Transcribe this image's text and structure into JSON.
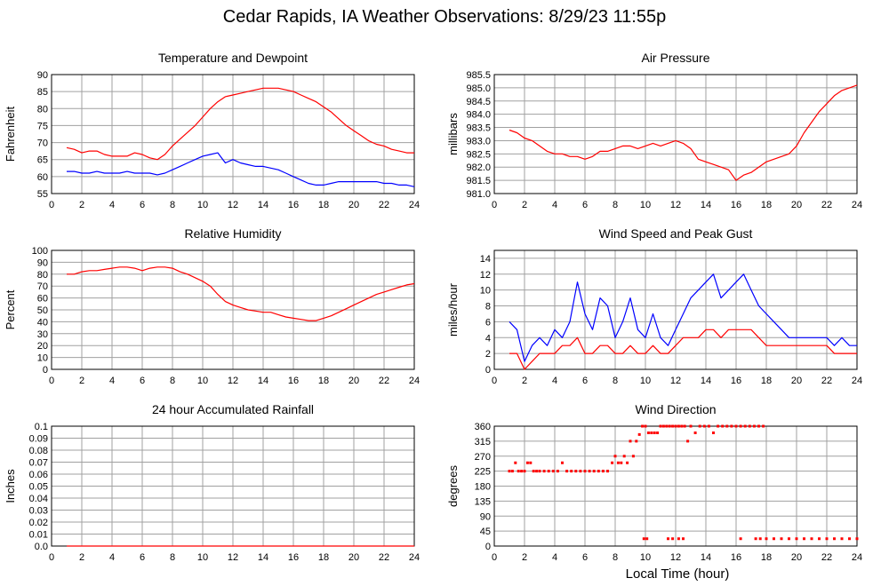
{
  "page": {
    "title": "Cedar Rapids, IA Weather Observations: 8/29/23 11:55p",
    "xlabel": "Local Time (hour)"
  },
  "colors": {
    "red": "#ff0000",
    "blue": "#0000ff",
    "grid": "#a0a0a0",
    "frame": "#000000"
  },
  "chart_data": [
    {
      "id": "temp",
      "type": "line",
      "title": "Temperature and Dewpoint",
      "ylabel": "Fahrenheit",
      "xlim": [
        0,
        24
      ],
      "ylim": [
        55,
        90
      ],
      "xticks": [
        2,
        4,
        6,
        8,
        10,
        12,
        14,
        16,
        18,
        20,
        22,
        24
      ],
      "yticks": [
        55,
        60,
        65,
        70,
        75,
        80,
        85,
        90
      ],
      "ytick_labels": [
        "55",
        "60",
        "65",
        "70",
        "75",
        "80",
        "85",
        "90"
      ],
      "grid": true,
      "series": [
        {
          "color": "#ff0000",
          "x": [
            1,
            1.5,
            2,
            2.5,
            3,
            3.5,
            4,
            4.5,
            5,
            5.5,
            6,
            6.5,
            7,
            7.5,
            8,
            8.5,
            9,
            9.5,
            10,
            10.5,
            11,
            11.5,
            12,
            12.5,
            13,
            13.5,
            14,
            14.5,
            15,
            15.5,
            16,
            16.5,
            17,
            17.5,
            18,
            18.5,
            19,
            19.5,
            20,
            20.5,
            21,
            21.5,
            22,
            22.5,
            23,
            23.5,
            24
          ],
          "y": [
            68.5,
            68,
            67,
            67.5,
            67.5,
            66.5,
            66,
            66,
            66,
            67,
            66.5,
            65.5,
            65,
            66.5,
            69,
            71,
            73,
            75,
            77.5,
            80,
            82,
            83.5,
            84,
            84.5,
            85,
            85.5,
            86,
            86,
            86,
            85.5,
            85,
            84,
            83,
            82,
            80.5,
            79,
            77,
            75,
            73.5,
            72,
            70.5,
            69.5,
            69,
            68,
            67.5,
            67,
            67
          ]
        },
        {
          "color": "#0000ff",
          "x": [
            1,
            1.5,
            2,
            2.5,
            3,
            3.5,
            4,
            4.5,
            5,
            5.5,
            6,
            6.5,
            7,
            7.5,
            8,
            8.5,
            9,
            9.5,
            10,
            10.5,
            11,
            11.5,
            12,
            12.5,
            13,
            13.5,
            14,
            14.5,
            15,
            15.5,
            16,
            16.5,
            17,
            17.5,
            18,
            18.5,
            19,
            19.5,
            20,
            20.5,
            21,
            21.5,
            22,
            22.5,
            23,
            23.5,
            24
          ],
          "y": [
            61.5,
            61.5,
            61,
            61,
            61.5,
            61,
            61,
            61,
            61.5,
            61,
            61,
            61,
            60.5,
            61,
            62,
            63,
            64,
            65,
            66,
            66.5,
            67,
            64,
            65,
            64,
            63.5,
            63,
            63,
            62.5,
            62,
            61,
            60,
            59,
            58,
            57.5,
            57.5,
            58,
            58.5,
            58.5,
            58.5,
            58.5,
            58.5,
            58.5,
            58,
            58,
            57.5,
            57.5,
            57
          ]
        }
      ]
    },
    {
      "id": "pressure",
      "type": "line",
      "title": "Air Pressure",
      "ylabel": "millibars",
      "xlim": [
        0,
        24
      ],
      "ylim": [
        981.0,
        985.5
      ],
      "xticks": [
        2,
        4,
        6,
        8,
        10,
        12,
        14,
        16,
        18,
        20,
        22,
        24
      ],
      "yticks": [
        981.0,
        981.5,
        982.0,
        982.5,
        983.0,
        983.5,
        984.0,
        984.5,
        985.0,
        985.5
      ],
      "ytick_labels": [
        "981.0",
        "981.5",
        "982.0",
        "982.5",
        "983.0",
        "983.5",
        "984.0",
        "984.5",
        "985.0",
        "985.5"
      ],
      "grid": true,
      "series": [
        {
          "color": "#ff0000",
          "x": [
            1,
            1.5,
            2,
            2.5,
            3,
            3.5,
            4,
            4.5,
            5,
            5.5,
            6,
            6.5,
            7,
            7.5,
            8,
            8.5,
            9,
            9.5,
            10,
            10.5,
            11,
            11.5,
            12,
            12.5,
            13,
            13.5,
            14,
            14.5,
            15,
            15.5,
            16,
            16.5,
            17,
            17.5,
            18,
            18.5,
            19,
            19.5,
            20,
            20.5,
            21,
            21.5,
            22,
            22.5,
            23,
            23.5,
            24
          ],
          "y": [
            983.4,
            983.3,
            983.1,
            983.0,
            982.8,
            982.6,
            982.5,
            982.5,
            982.4,
            982.4,
            982.3,
            982.4,
            982.6,
            982.6,
            982.7,
            982.8,
            982.8,
            982.7,
            982.8,
            982.9,
            982.8,
            982.9,
            983.0,
            982.9,
            982.7,
            982.3,
            982.2,
            982.1,
            982.0,
            981.9,
            981.5,
            981.7,
            981.8,
            982.0,
            982.2,
            982.3,
            982.4,
            982.5,
            982.8,
            983.3,
            983.7,
            984.1,
            984.4,
            984.7,
            984.9,
            985.0,
            985.1
          ]
        }
      ]
    },
    {
      "id": "humidity",
      "type": "line",
      "title": "Relative Humidity",
      "ylabel": "Percent",
      "xlim": [
        0,
        24
      ],
      "ylim": [
        0,
        100
      ],
      "xticks": [
        2,
        4,
        6,
        8,
        10,
        12,
        14,
        16,
        18,
        20,
        22,
        24
      ],
      "yticks": [
        0,
        10,
        20,
        30,
        40,
        50,
        60,
        70,
        80,
        90,
        100
      ],
      "ytick_labels": [
        "0",
        "10",
        "20",
        "30",
        "40",
        "50",
        "60",
        "70",
        "80",
        "90",
        "100"
      ],
      "grid": true,
      "series": [
        {
          "color": "#ff0000",
          "x": [
            1,
            1.5,
            2,
            2.5,
            3,
            3.5,
            4,
            4.5,
            5,
            5.5,
            6,
            6.5,
            7,
            7.5,
            8,
            8.5,
            9,
            9.5,
            10,
            10.5,
            11,
            11.5,
            12,
            12.5,
            13,
            13.5,
            14,
            14.5,
            15,
            15.5,
            16,
            16.5,
            17,
            17.5,
            18,
            18.5,
            19,
            19.5,
            20,
            20.5,
            21,
            21.5,
            22,
            22.5,
            23,
            23.5,
            24
          ],
          "y": [
            80,
            80,
            82,
            83,
            83,
            84,
            85,
            86,
            86,
            85,
            83,
            85,
            86,
            86,
            85,
            82,
            80,
            77,
            74,
            70,
            63,
            57,
            54,
            52,
            50,
            49,
            48,
            48,
            46,
            44,
            43,
            42,
            41,
            41,
            43,
            45,
            48,
            51,
            54,
            57,
            60,
            63,
            65,
            67,
            69,
            71,
            72
          ]
        }
      ]
    },
    {
      "id": "wind",
      "type": "line",
      "title": "Wind Speed and Peak Gust",
      "ylabel": "miles/hour",
      "xlim": [
        0,
        24
      ],
      "ylim": [
        0,
        15
      ],
      "xticks": [
        2,
        4,
        6,
        8,
        10,
        12,
        14,
        16,
        18,
        20,
        22,
        24
      ],
      "yticks": [
        0,
        2,
        4,
        6,
        8,
        10,
        12,
        14
      ],
      "ytick_labels": [
        "0",
        "2",
        "4",
        "6",
        "8",
        "10",
        "12",
        "14"
      ],
      "grid": true,
      "series": [
        {
          "color": "#0000ff",
          "x": [
            1,
            1.5,
            2,
            2.5,
            3,
            3.5,
            4,
            4.5,
            5,
            5.5,
            6,
            6.5,
            7,
            7.5,
            8,
            8.5,
            9,
            9.5,
            10,
            10.5,
            11,
            11.5,
            12,
            12.5,
            13,
            13.5,
            14,
            14.5,
            15,
            15.5,
            16,
            16.5,
            17,
            17.5,
            18,
            18.5,
            19,
            19.5,
            20,
            20.5,
            21,
            21.5,
            22,
            22.5,
            23,
            23.5,
            24
          ],
          "y": [
            6,
            5,
            1,
            3,
            4,
            3,
            5,
            4,
            6,
            11,
            7,
            5,
            9,
            8,
            4,
            6,
            9,
            5,
            4,
            7,
            4,
            3,
            5,
            7,
            9,
            10,
            11,
            12,
            9,
            10,
            11,
            12,
            10,
            8,
            7,
            6,
            5,
            4,
            4,
            4,
            4,
            4,
            4,
            3,
            4,
            3,
            3
          ]
        },
        {
          "color": "#ff0000",
          "x": [
            1,
            1.5,
            2,
            2.5,
            3,
            3.5,
            4,
            4.5,
            5,
            5.5,
            6,
            6.5,
            7,
            7.5,
            8,
            8.5,
            9,
            9.5,
            10,
            10.5,
            11,
            11.5,
            12,
            12.5,
            13,
            13.5,
            14,
            14.5,
            15,
            15.5,
            16,
            16.5,
            17,
            17.5,
            18,
            18.5,
            19,
            19.5,
            20,
            20.5,
            21,
            21.5,
            22,
            22.5,
            23,
            23.5,
            24
          ],
          "y": [
            2,
            2,
            0,
            1,
            2,
            2,
            2,
            3,
            3,
            4,
            2,
            2,
            3,
            3,
            2,
            2,
            3,
            2,
            2,
            3,
            2,
            2,
            3,
            4,
            4,
            4,
            5,
            5,
            4,
            5,
            5,
            5,
            5,
            4,
            3,
            3,
            3,
            3,
            3,
            3,
            3,
            3,
            3,
            2,
            2,
            2,
            2
          ]
        }
      ]
    },
    {
      "id": "rain",
      "type": "line",
      "title": "24 hour Accumulated Rainfall",
      "ylabel": "Inches",
      "xlim": [
        0,
        24
      ],
      "ylim": [
        0,
        0.1
      ],
      "xticks": [
        2,
        4,
        6,
        8,
        10,
        12,
        14,
        16,
        18,
        20,
        22,
        24
      ],
      "yticks": [
        0,
        0.01,
        0.02,
        0.03,
        0.04,
        0.05,
        0.06,
        0.07,
        0.08,
        0.09,
        0.1
      ],
      "ytick_labels": [
        "0.0",
        "0.01",
        "0.02",
        "0.03",
        "0.04",
        "0.05",
        "0.06",
        "0.07",
        "0.08",
        "0.09",
        "0.1"
      ],
      "grid": true,
      "series": [
        {
          "color": "#ff0000",
          "x": [
            1,
            24
          ],
          "y": [
            0,
            0
          ]
        }
      ]
    },
    {
      "id": "direction",
      "type": "scatter",
      "title": "Wind Direction",
      "ylabel": "degrees",
      "xlim": [
        0,
        24
      ],
      "ylim": [
        0,
        360
      ],
      "xticks": [
        2,
        4,
        6,
        8,
        10,
        12,
        14,
        16,
        18,
        20,
        22,
        24
      ],
      "yticks": [
        0,
        45,
        90,
        135,
        180,
        225,
        270,
        315,
        360
      ],
      "ytick_labels": [
        "0",
        "45",
        "90",
        "135",
        "180",
        "225",
        "270",
        "315",
        "360"
      ],
      "grid": true,
      "series": [
        {
          "color": "#ff0000",
          "x": [
            1,
            1.2,
            1.4,
            1.6,
            1.8,
            2,
            2.2,
            2.4,
            2.6,
            2.8,
            3,
            3.3,
            3.6,
            3.9,
            4.2,
            4.5,
            4.8,
            5.1,
            5.4,
            5.7,
            6,
            6.3,
            6.6,
            6.9,
            7.2,
            7.5,
            7.8,
            8,
            8.2,
            8.4,
            8.6,
            8.8,
            9,
            9.2,
            9.4,
            9.6,
            9.8,
            10,
            10.2,
            10.4,
            10.6,
            10.8,
            11,
            11.2,
            11.4,
            11.6,
            11.8,
            12,
            12.2,
            12.4,
            12.6,
            12.8,
            13,
            13.3,
            13.6,
            13.9,
            14.2,
            14.5,
            14.8,
            15.1,
            15.4,
            15.7,
            16,
            16.3,
            16.6,
            16.9,
            17.2,
            17.5,
            17.8,
            9.9,
            10.1,
            11.5,
            11.8,
            12.2,
            12.5,
            16.3,
            17.3,
            17.6,
            18,
            18.5,
            19,
            19.5,
            20,
            20.5,
            21,
            21.5,
            22,
            22.5,
            23,
            23.5,
            24
          ],
          "y": [
            225,
            225,
            250,
            225,
            225,
            225,
            250,
            250,
            225,
            225,
            225,
            225,
            225,
            225,
            225,
            250,
            225,
            225,
            225,
            225,
            225,
            225,
            225,
            225,
            225,
            225,
            250,
            270,
            250,
            250,
            270,
            250,
            315,
            270,
            315,
            335,
            360,
            360,
            340,
            340,
            340,
            340,
            360,
            360,
            360,
            360,
            360,
            360,
            360,
            360,
            360,
            315,
            360,
            340,
            360,
            360,
            360,
            340,
            360,
            360,
            360,
            360,
            360,
            360,
            360,
            360,
            360,
            360,
            360,
            22,
            22,
            22,
            22,
            22,
            22,
            22,
            22,
            22,
            22,
            22,
            22,
            22,
            22,
            22,
            22,
            22,
            22,
            22,
            22,
            22,
            22
          ]
        }
      ]
    }
  ]
}
